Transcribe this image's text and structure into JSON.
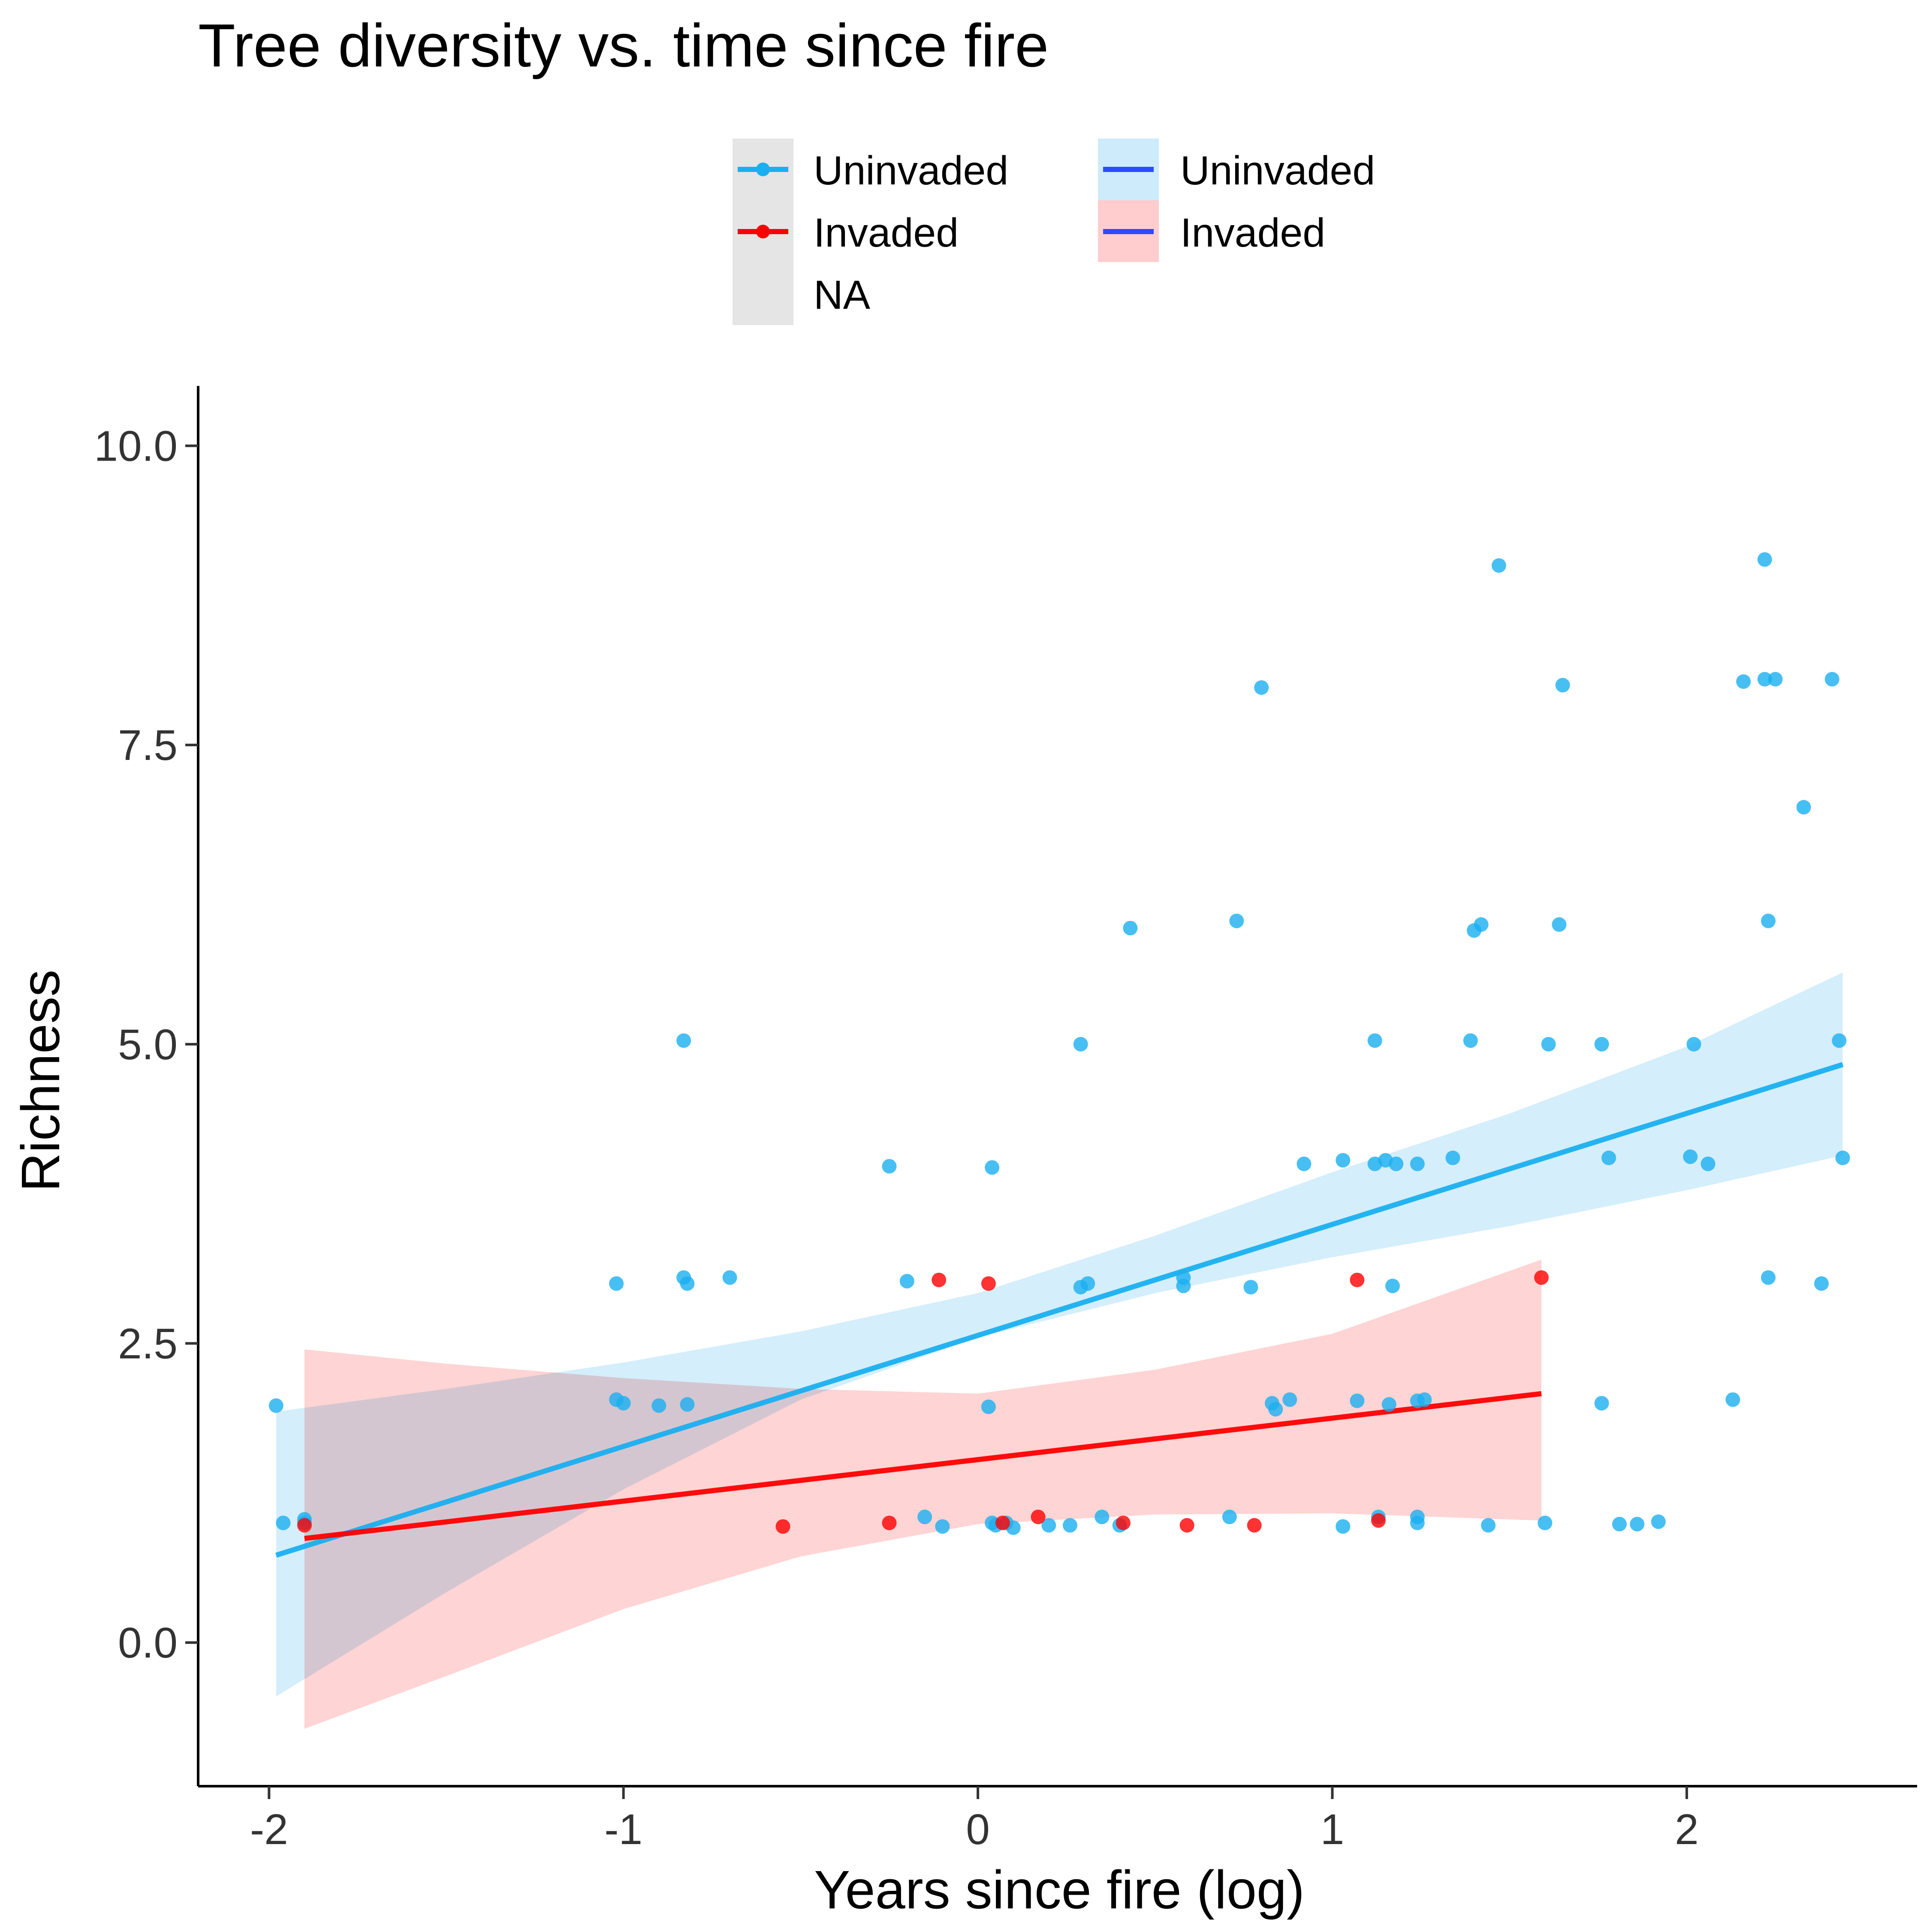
{
  "chart_data": {
    "type": "scatter",
    "title": "Tree diversity vs. time since fire",
    "xlabel": "Years since fire (log)",
    "ylabel": "Richness",
    "xlim": [
      -2.2,
      2.65
    ],
    "ylim": [
      -1.2,
      10.5
    ],
    "x_ticks": [
      -2,
      -1,
      0,
      1,
      2
    ],
    "x_tick_labels": [
      "-2",
      "-1",
      "0",
      "1",
      "2"
    ],
    "y_ticks": [
      0,
      2.5,
      5,
      7.5,
      10
    ],
    "y_tick_labels": [
      "0.0",
      "2.5",
      "5.0",
      "7.5",
      "10.0"
    ],
    "grid": false,
    "legend_position": "top",
    "legend": {
      "points": [
        {
          "label": "Uninvaded",
          "color": "#1AAFF0"
        },
        {
          "label": "Invaded",
          "color": "#FF0000"
        },
        {
          "label": "NA",
          "color": "#E5E5E5"
        }
      ],
      "ribbons": [
        {
          "label": "Uninvaded",
          "fill": "#CDEBFA",
          "line": "#2B4BFF"
        },
        {
          "label": "Invaded",
          "fill": "#FFCDCD",
          "line": "#2B4BFF"
        }
      ]
    },
    "series": [
      {
        "name": "Uninvaded",
        "color": "#1AAFF0",
        "ribbon_color": "#CDEBFA",
        "fit": [
          [
            -1.98,
            0.73
          ],
          [
            2.44,
            4.83
          ]
        ],
        "ci_band": [
          [
            -1.98,
            -0.45,
            1.93
          ],
          [
            -1.5,
            0.42,
            2.12
          ],
          [
            -1.0,
            1.28,
            2.34
          ],
          [
            -0.5,
            2.03,
            2.6
          ],
          [
            0.0,
            2.55,
            2.92
          ],
          [
            0.5,
            2.92,
            3.4
          ],
          [
            1.0,
            3.22,
            3.93
          ],
          [
            1.5,
            3.48,
            4.42
          ],
          [
            2.0,
            3.78,
            4.98
          ],
          [
            2.44,
            4.07,
            5.6
          ]
        ],
        "points": [
          [
            -1.98,
            1.98
          ],
          [
            -1.96,
            1.0
          ],
          [
            -1.9,
            1.03
          ],
          [
            -1.9,
            1.0
          ],
          [
            -1.02,
            3.0
          ],
          [
            -1.02,
            2.03
          ],
          [
            -1.0,
            2.0
          ],
          [
            -0.9,
            1.98
          ],
          [
            -0.83,
            5.03
          ],
          [
            -0.83,
            3.05
          ],
          [
            -0.82,
            3.0
          ],
          [
            -0.82,
            1.99
          ],
          [
            -0.7,
            3.05
          ],
          [
            -0.25,
            3.98
          ],
          [
            -0.2,
            3.02
          ],
          [
            -0.15,
            1.05
          ],
          [
            -0.1,
            0.97
          ],
          [
            0.03,
            1.97
          ],
          [
            0.04,
            3.97
          ],
          [
            0.04,
            1.0
          ],
          [
            0.05,
            0.98
          ],
          [
            0.08,
            1.0
          ],
          [
            0.1,
            0.96
          ],
          [
            0.2,
            0.98
          ],
          [
            0.26,
            0.98
          ],
          [
            0.29,
            2.97
          ],
          [
            0.29,
            5.0
          ],
          [
            0.31,
            3.0
          ],
          [
            0.35,
            1.05
          ],
          [
            0.4,
            0.98
          ],
          [
            0.43,
            5.97
          ],
          [
            0.58,
            2.98
          ],
          [
            0.58,
            3.05
          ],
          [
            0.71,
            1.05
          ],
          [
            0.73,
            6.03
          ],
          [
            0.77,
            2.97
          ],
          [
            0.8,
            7.98
          ],
          [
            0.83,
            2.0
          ],
          [
            0.84,
            1.95
          ],
          [
            0.88,
            2.03
          ],
          [
            0.92,
            4.0
          ],
          [
            1.03,
            4.03
          ],
          [
            1.03,
            0.97
          ],
          [
            1.07,
            2.02
          ],
          [
            1.12,
            5.03
          ],
          [
            1.12,
            4.0
          ],
          [
            1.13,
            1.05
          ],
          [
            1.15,
            4.03
          ],
          [
            1.16,
            1.99
          ],
          [
            1.17,
            2.98
          ],
          [
            1.18,
            4.0
          ],
          [
            1.24,
            4.0
          ],
          [
            1.24,
            2.02
          ],
          [
            1.24,
            1.05
          ],
          [
            1.24,
            1.0
          ],
          [
            1.26,
            2.03
          ],
          [
            1.34,
            4.05
          ],
          [
            1.39,
            5.03
          ],
          [
            1.4,
            5.95
          ],
          [
            1.42,
            6.0
          ],
          [
            1.44,
            0.98
          ],
          [
            1.47,
            9.0
          ],
          [
            1.6,
            1.0
          ],
          [
            1.61,
            5.0
          ],
          [
            1.64,
            6.0
          ],
          [
            1.65,
            8.0
          ],
          [
            1.76,
            5.0
          ],
          [
            1.76,
            2.0
          ],
          [
            1.78,
            4.05
          ],
          [
            1.81,
            0.99
          ],
          [
            1.86,
            0.99
          ],
          [
            1.92,
            1.01
          ],
          [
            2.01,
            4.06
          ],
          [
            2.02,
            5.0
          ],
          [
            2.06,
            4.0
          ],
          [
            2.13,
            2.03
          ],
          [
            2.16,
            8.03
          ],
          [
            2.22,
            9.05
          ],
          [
            2.22,
            8.05
          ],
          [
            2.23,
            6.03
          ],
          [
            2.23,
            3.05
          ],
          [
            2.25,
            8.05
          ],
          [
            2.33,
            6.98
          ],
          [
            2.38,
            3.0
          ],
          [
            2.41,
            8.05
          ],
          [
            2.43,
            5.03
          ],
          [
            2.44,
            4.05
          ]
        ]
      },
      {
        "name": "Invaded",
        "color": "#FF0000",
        "ribbon_color": "#FFCDCD",
        "fit": [
          [
            -1.9,
            0.87
          ],
          [
            1.59,
            2.08
          ]
        ],
        "ci_band": [
          [
            -1.9,
            -0.72,
            2.45
          ],
          [
            -1.5,
            -0.28,
            2.33
          ],
          [
            -1.0,
            0.28,
            2.21
          ],
          [
            -0.5,
            0.72,
            2.12
          ],
          [
            0.0,
            0.99,
            2.08
          ],
          [
            0.5,
            1.07,
            2.28
          ],
          [
            1.0,
            1.08,
            2.58
          ],
          [
            1.59,
            1.02,
            3.2
          ]
        ],
        "points": [
          [
            -1.9,
            0.98
          ],
          [
            -0.55,
            0.97
          ],
          [
            -0.25,
            1.0
          ],
          [
            -0.11,
            3.03
          ],
          [
            0.03,
            3.0
          ],
          [
            0.07,
            1.0
          ],
          [
            0.17,
            1.05
          ],
          [
            0.41,
            1.0
          ],
          [
            0.59,
            0.98
          ],
          [
            0.78,
            0.98
          ],
          [
            1.07,
            3.03
          ],
          [
            1.13,
            1.02
          ],
          [
            1.59,
            3.05
          ]
        ]
      }
    ]
  }
}
